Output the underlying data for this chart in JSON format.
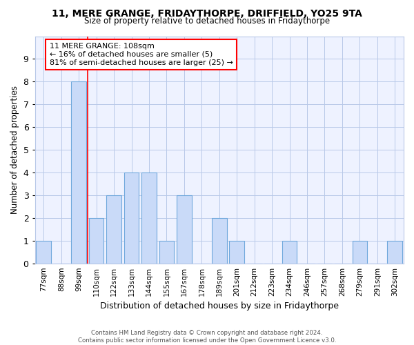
{
  "title1": "11, MERE GRANGE, FRIDAYTHORPE, DRIFFIELD, YO25 9TA",
  "title2": "Size of property relative to detached houses in Fridaythorpe",
  "xlabel": "Distribution of detached houses by size in Fridaythorpe",
  "ylabel": "Number of detached properties",
  "footer1": "Contains HM Land Registry data © Crown copyright and database right 2024.",
  "footer2": "Contains public sector information licensed under the Open Government Licence v3.0.",
  "categories": [
    "77sqm",
    "88sqm",
    "99sqm",
    "110sqm",
    "122sqm",
    "133sqm",
    "144sqm",
    "155sqm",
    "167sqm",
    "178sqm",
    "189sqm",
    "201sqm",
    "212sqm",
    "223sqm",
    "234sqm",
    "246sqm",
    "257sqm",
    "268sqm",
    "279sqm",
    "291sqm",
    "302sqm"
  ],
  "values": [
    1,
    0,
    8,
    2,
    3,
    4,
    4,
    1,
    3,
    0,
    2,
    1,
    0,
    0,
    1,
    0,
    0,
    0,
    1,
    0,
    1
  ],
  "bar_color": "#c9daf8",
  "bar_edge_color": "#6fa8dc",
  "red_line_x": 2.5,
  "annotation_line1": "11 MERE GRANGE: 108sqm",
  "annotation_line2": "← 16% of detached houses are smaller (5)",
  "annotation_line3": "81% of semi-detached houses are larger (25) →",
  "ylim": [
    0,
    10
  ],
  "yticks": [
    0,
    1,
    2,
    3,
    4,
    5,
    6,
    7,
    8,
    9,
    10
  ],
  "grid_color": "#b8c8e8",
  "background_color": "#eef2ff"
}
